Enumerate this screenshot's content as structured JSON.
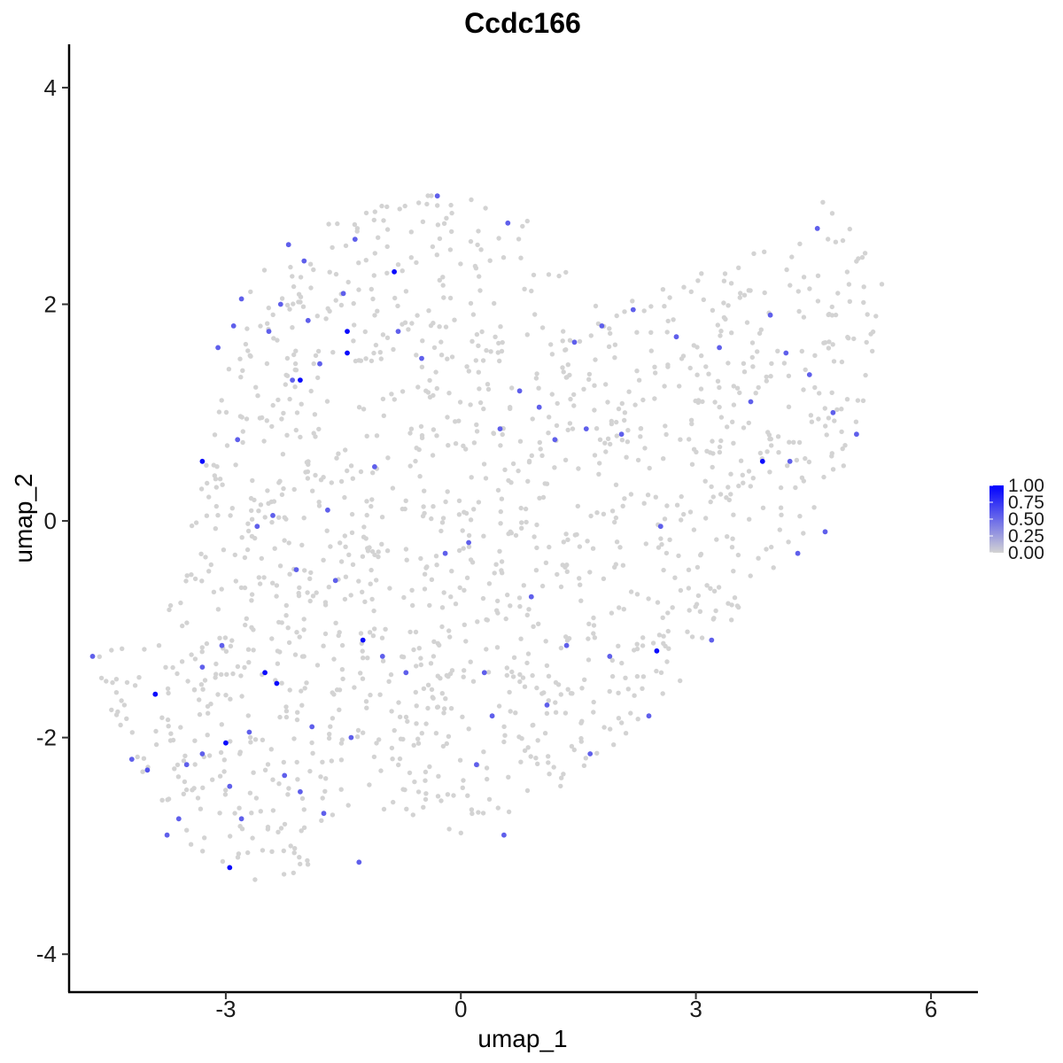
{
  "chart_data": {
    "type": "scatter",
    "title": "Ccdc166",
    "xlabel": "umap_1",
    "ylabel": "umap_2",
    "xlim": [
      -5.0,
      6.6
    ],
    "ylim": [
      -4.35,
      4.4
    ],
    "xticks": [
      -3,
      0,
      3,
      6
    ],
    "yticks": [
      -4,
      -2,
      0,
      2,
      4
    ],
    "xtick_labels": [
      "-3",
      "0",
      "3",
      "6"
    ],
    "ytick_labels": [
      "-4",
      "-2",
      "0",
      "2",
      "4"
    ],
    "grid": false,
    "legend": {
      "placement": "right",
      "colorbar": true,
      "min": 0.0,
      "max": 1.0,
      "ticks": [
        1.0,
        0.75,
        0.5,
        0.25,
        0.0
      ],
      "tick_labels": [
        "1.00",
        "0.75",
        "0.50",
        "0.25",
        "0.00"
      ],
      "low_color": "#d3d3d3",
      "high_color": "#0000ff"
    },
    "background_point_value": 0.0,
    "expressing_points": [
      {
        "x": -4.7,
        "y": -1.25,
        "v": 0.55
      },
      {
        "x": -4.2,
        "y": -2.2,
        "v": 0.55
      },
      {
        "x": -4.0,
        "y": -2.3,
        "v": 0.6
      },
      {
        "x": -3.9,
        "y": -1.6,
        "v": 0.95
      },
      {
        "x": -3.75,
        "y": -2.9,
        "v": 0.55
      },
      {
        "x": -3.6,
        "y": -2.75,
        "v": 0.55
      },
      {
        "x": -3.5,
        "y": -2.25,
        "v": 0.55
      },
      {
        "x": -3.3,
        "y": 0.55,
        "v": 0.95
      },
      {
        "x": -3.3,
        "y": -2.15,
        "v": 0.55
      },
      {
        "x": -3.3,
        "y": -1.35,
        "v": 0.55
      },
      {
        "x": -3.1,
        "y": 1.6,
        "v": 0.55
      },
      {
        "x": -3.05,
        "y": -1.15,
        "v": 0.55
      },
      {
        "x": -3.0,
        "y": -2.05,
        "v": 0.95
      },
      {
        "x": -2.95,
        "y": -2.45,
        "v": 0.55
      },
      {
        "x": -2.95,
        "y": -3.2,
        "v": 0.95
      },
      {
        "x": -2.9,
        "y": 1.8,
        "v": 0.55
      },
      {
        "x": -2.85,
        "y": 0.75,
        "v": 0.55
      },
      {
        "x": -2.8,
        "y": -2.75,
        "v": 0.55
      },
      {
        "x": -2.8,
        "y": 2.05,
        "v": 0.55
      },
      {
        "x": -2.7,
        "y": -1.95,
        "v": 0.55
      },
      {
        "x": -2.6,
        "y": -0.05,
        "v": 0.55
      },
      {
        "x": -2.5,
        "y": -1.4,
        "v": 0.95
      },
      {
        "x": -2.45,
        "y": 1.75,
        "v": 0.55
      },
      {
        "x": -2.4,
        "y": 0.05,
        "v": 0.55
      },
      {
        "x": -2.35,
        "y": -1.5,
        "v": 0.95
      },
      {
        "x": -2.3,
        "y": 2.0,
        "v": 0.55
      },
      {
        "x": -2.25,
        "y": -2.35,
        "v": 0.55
      },
      {
        "x": -2.2,
        "y": 2.55,
        "v": 0.55
      },
      {
        "x": -2.15,
        "y": 1.3,
        "v": 0.55
      },
      {
        "x": -2.1,
        "y": -0.45,
        "v": 0.55
      },
      {
        "x": -2.05,
        "y": 1.3,
        "v": 0.95
      },
      {
        "x": -2.05,
        "y": -2.5,
        "v": 0.55
      },
      {
        "x": -2.0,
        "y": 2.4,
        "v": 0.55
      },
      {
        "x": -1.95,
        "y": 1.85,
        "v": 0.55
      },
      {
        "x": -1.9,
        "y": -1.9,
        "v": 0.55
      },
      {
        "x": -1.8,
        "y": 1.45,
        "v": 0.55
      },
      {
        "x": -1.75,
        "y": -2.7,
        "v": 0.55
      },
      {
        "x": -1.7,
        "y": 0.1,
        "v": 0.55
      },
      {
        "x": -1.6,
        "y": -0.55,
        "v": 0.55
      },
      {
        "x": -1.5,
        "y": 2.1,
        "v": 0.55
      },
      {
        "x": -1.45,
        "y": 1.75,
        "v": 0.95
      },
      {
        "x": -1.45,
        "y": 1.55,
        "v": 0.95
      },
      {
        "x": -1.4,
        "y": -2.0,
        "v": 0.55
      },
      {
        "x": -1.35,
        "y": 2.6,
        "v": 0.55
      },
      {
        "x": -1.3,
        "y": -3.15,
        "v": 0.55
      },
      {
        "x": -1.25,
        "y": -1.1,
        "v": 0.95
      },
      {
        "x": -1.1,
        "y": 0.5,
        "v": 0.55
      },
      {
        "x": -1.0,
        "y": -1.25,
        "v": 0.55
      },
      {
        "x": -0.85,
        "y": 2.3,
        "v": 0.95
      },
      {
        "x": -0.8,
        "y": 1.75,
        "v": 0.55
      },
      {
        "x": -0.7,
        "y": -1.4,
        "v": 0.55
      },
      {
        "x": -0.5,
        "y": 1.5,
        "v": 0.55
      },
      {
        "x": -0.3,
        "y": 3.0,
        "v": 0.55
      },
      {
        "x": -0.2,
        "y": -0.3,
        "v": 0.55
      },
      {
        "x": 0.1,
        "y": -0.2,
        "v": 0.55
      },
      {
        "x": 0.2,
        "y": -2.25,
        "v": 0.55
      },
      {
        "x": 0.3,
        "y": -1.4,
        "v": 0.55
      },
      {
        "x": 0.4,
        "y": -1.8,
        "v": 0.55
      },
      {
        "x": 0.5,
        "y": 0.85,
        "v": 0.55
      },
      {
        "x": 0.55,
        "y": -2.9,
        "v": 0.55
      },
      {
        "x": 0.6,
        "y": 2.75,
        "v": 0.55
      },
      {
        "x": 0.75,
        "y": 1.2,
        "v": 0.55
      },
      {
        "x": 0.9,
        "y": -0.7,
        "v": 0.55
      },
      {
        "x": 1.0,
        "y": 1.05,
        "v": 0.55
      },
      {
        "x": 1.1,
        "y": -1.7,
        "v": 0.55
      },
      {
        "x": 1.2,
        "y": 0.75,
        "v": 0.55
      },
      {
        "x": 1.35,
        "y": -1.15,
        "v": 0.55
      },
      {
        "x": 1.45,
        "y": 1.65,
        "v": 0.55
      },
      {
        "x": 1.6,
        "y": 0.85,
        "v": 0.55
      },
      {
        "x": 1.65,
        "y": -2.15,
        "v": 0.55
      },
      {
        "x": 1.8,
        "y": 1.8,
        "v": 0.55
      },
      {
        "x": 1.9,
        "y": -1.25,
        "v": 0.55
      },
      {
        "x": 2.05,
        "y": 0.8,
        "v": 0.55
      },
      {
        "x": 2.2,
        "y": 1.95,
        "v": 0.55
      },
      {
        "x": 2.4,
        "y": -1.8,
        "v": 0.55
      },
      {
        "x": 2.5,
        "y": -1.2,
        "v": 0.95
      },
      {
        "x": 2.55,
        "y": -0.05,
        "v": 0.55
      },
      {
        "x": 2.75,
        "y": 1.7,
        "v": 0.55
      },
      {
        "x": 3.2,
        "y": -1.1,
        "v": 0.55
      },
      {
        "x": 3.3,
        "y": 1.6,
        "v": 0.55
      },
      {
        "x": 3.7,
        "y": 1.1,
        "v": 0.55
      },
      {
        "x": 3.85,
        "y": 0.55,
        "v": 0.95
      },
      {
        "x": 3.95,
        "y": 1.9,
        "v": 0.55
      },
      {
        "x": 4.15,
        "y": 1.55,
        "v": 0.55
      },
      {
        "x": 4.2,
        "y": 0.55,
        "v": 0.55
      },
      {
        "x": 4.3,
        "y": -0.3,
        "v": 0.55
      },
      {
        "x": 4.45,
        "y": 1.35,
        "v": 0.55
      },
      {
        "x": 4.55,
        "y": 2.7,
        "v": 0.55
      },
      {
        "x": 4.65,
        "y": -0.1,
        "v": 0.55
      },
      {
        "x": 4.75,
        "y": 1.0,
        "v": 0.55
      },
      {
        "x": 5.05,
        "y": 0.8,
        "v": 0.55
      }
    ]
  }
}
